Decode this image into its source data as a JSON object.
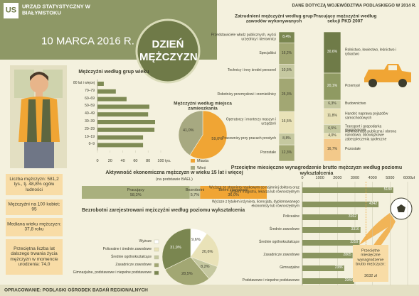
{
  "header": {
    "logo": "US",
    "org": "URZĄD STATYSTYCZNY W BIAŁYMSTOKU",
    "date": "10 MARCA 2016 R.",
    "title": "DZIEŃ MĘŻCZYZN",
    "note": "DANE DOTYCZĄ WOJEWÓDZTWA PODLASKIEGO W 2014 R."
  },
  "facts": [
    "Liczba mężczyzn: 581,2 tys., tj. 48,8% ogółu ludności",
    "Mężczyźni na 100 kobiet: 95",
    "Mediana wieku mężczyzn: 37,8 roku",
    "Przeciętna liczba lat dalszego trwania życia mężczyzn w momencie urodzenia: 74,0"
  ],
  "chart_data": [
    {
      "type": "bar",
      "orientation": "horizontal",
      "title": "Mężczyźni według grup wieku",
      "categories": [
        "80 lat i więcej",
        "70–79",
        "60–69",
        "50–59",
        "40–49",
        "30–39",
        "20–29",
        "10–19",
        "0–9"
      ],
      "values": [
        10,
        29,
        46,
        82,
        80,
        91,
        90,
        72,
        72
      ],
      "xlim": [
        0,
        100
      ],
      "xticks": [
        0,
        20,
        40,
        60,
        80,
        100
      ],
      "x_unit": "tys.",
      "color": "#7f8b55"
    },
    {
      "type": "pie",
      "title": "Mężczyźni według miejsca zamieszkania",
      "categories": [
        "Miasta",
        "Wieś"
      ],
      "values": [
        59.0,
        41.0
      ],
      "value_labels": [
        "59,0%",
        "41,0%"
      ],
      "colors": [
        "#f0a534",
        "#a7a981"
      ]
    },
    {
      "type": "stacked_bar",
      "title": "Aktywność ekonomiczna mężczyzn w wieku 15 lat i więcej",
      "subtitle": "(na podstawie BAEL)",
      "categories": [
        "Pracujący",
        "Bezrobotni",
        "Bierni zawodowo"
      ],
      "values": [
        58.3,
        5.7,
        36.0
      ],
      "value_labels": [
        "58,3%",
        "5,7%",
        "36,0%"
      ],
      "colors": [
        "#a9b07e",
        "#c9cba6",
        "#f0a534"
      ]
    },
    {
      "type": "pie",
      "title": "Bezrobotni zarejestrowani mężczyźni według poziomu wykształcenia",
      "categories": [
        "Wyższe",
        "Policealne i średnie zawodowe",
        "Średnie ogólnokształcące",
        "Zasadnicze zawodowe",
        "Gimnazjalne, podstawowe i niepełne podstawowe"
      ],
      "values": [
        9.6,
        20.6,
        8.2,
        28.5,
        31.9
      ],
      "value_labels": [
        "9,6%",
        "20,6%",
        "8,2%",
        "28,5%",
        "31,9%"
      ],
      "colors": [
        "#ffffff",
        "#e9e2b8",
        "#c5c8a0",
        "#a2a773",
        "#7a8650"
      ]
    },
    {
      "type": "stacked_column",
      "title": "Zatrudnieni mężczyźni według grup zawodów wykonywanych",
      "categories": [
        "Przedstawiciele władz publicznych, wyżsi urzędnicy i kierownicy",
        "Specjaliści",
        "Technicy i inny średni personel",
        "Robotnicy przemysłowi i rzemieślnicy",
        "Operatorzy i monterzy maszyn i urządzeń",
        "Pracownicy przy pracach prostych",
        "Pozostałe"
      ],
      "values": [
        8.4,
        16.2,
        10.5,
        25.3,
        16.5,
        8.8,
        12.3
      ],
      "value_labels": [
        "8,4%",
        "16,2%",
        "10,5%",
        "25,3%",
        "16,5%",
        "8,8%",
        "12,3%"
      ],
      "colors": [
        "#7a8650",
        "#a2a773",
        "#c5c8a0",
        "#a2a773",
        "#e9e2b8",
        "#c5c8a0",
        "#a2a773"
      ]
    },
    {
      "type": "stacked_column",
      "title": "Pracujący mężczyźni według sekcji PKD 2007",
      "categories": [
        "Rolnictwo, łowiectwo, leśnictwo i rybactwo",
        "Przemysł",
        "Budownictwo",
        "Handel; naprawa pojazdów samochodowych",
        "Transport i gospodarka magazynowa",
        "Administracja publiczna i obrona narodowa; obowiązkowe zabezpieczenia społeczne",
        "Pozostałe"
      ],
      "values": [
        30.6,
        20.1,
        6.3,
        11.8,
        6.5,
        4.0,
        16.7
      ],
      "value_labels": [
        "30,6%",
        "20,1%",
        "6,3%",
        "11,8%",
        "6,5%",
        "4,0%",
        "16,7%"
      ],
      "colors": [
        "#6f7b48",
        "#8f9a62",
        "#c5c8a0",
        "#e9e2b8",
        "#c5c8a0",
        "#e9e2b8",
        "#f3c98a"
      ]
    },
    {
      "type": "bar",
      "orientation": "horizontal",
      "title": "Przeciętne miesięczne wynagrodzenie brutto mężczyzn według poziomu wykształcenia",
      "categories": [
        "Wyższe ze stopniem naukowym co najmniej doktora oraz tytułem magistra, lekarza lub równorzędnym",
        "Wyższe z tytułem inżyniera, licencjata, dyplomowanego ekonomisty lub równorzędnym",
        "Policealne",
        "Średnie zawodowe",
        "Średnie ogólnokształcące",
        "Zasadnicze zawodowe",
        "Gimnazjalne",
        "Podstawowe i niepełne podstawowe"
      ],
      "values": [
        5180,
        4342,
        3162,
        3316,
        3259,
        2865,
        2386,
        2949
      ],
      "xlim": [
        0,
        6000
      ],
      "xticks": [
        0,
        1000,
        2000,
        3000,
        4000,
        5000,
        6000
      ],
      "x_unit": "zł",
      "color": "#8a955f",
      "annotation": {
        "text": "Przeciętne miesięczne wynagrodzenie brutto mężczyzn:",
        "average": {
          "value": 3632,
          "label": "3632 zł"
        }
      }
    }
  ],
  "footer": "OPRACOWANIE: PODLASKI OŚRODEK BADAŃ REGIONALNYCH"
}
